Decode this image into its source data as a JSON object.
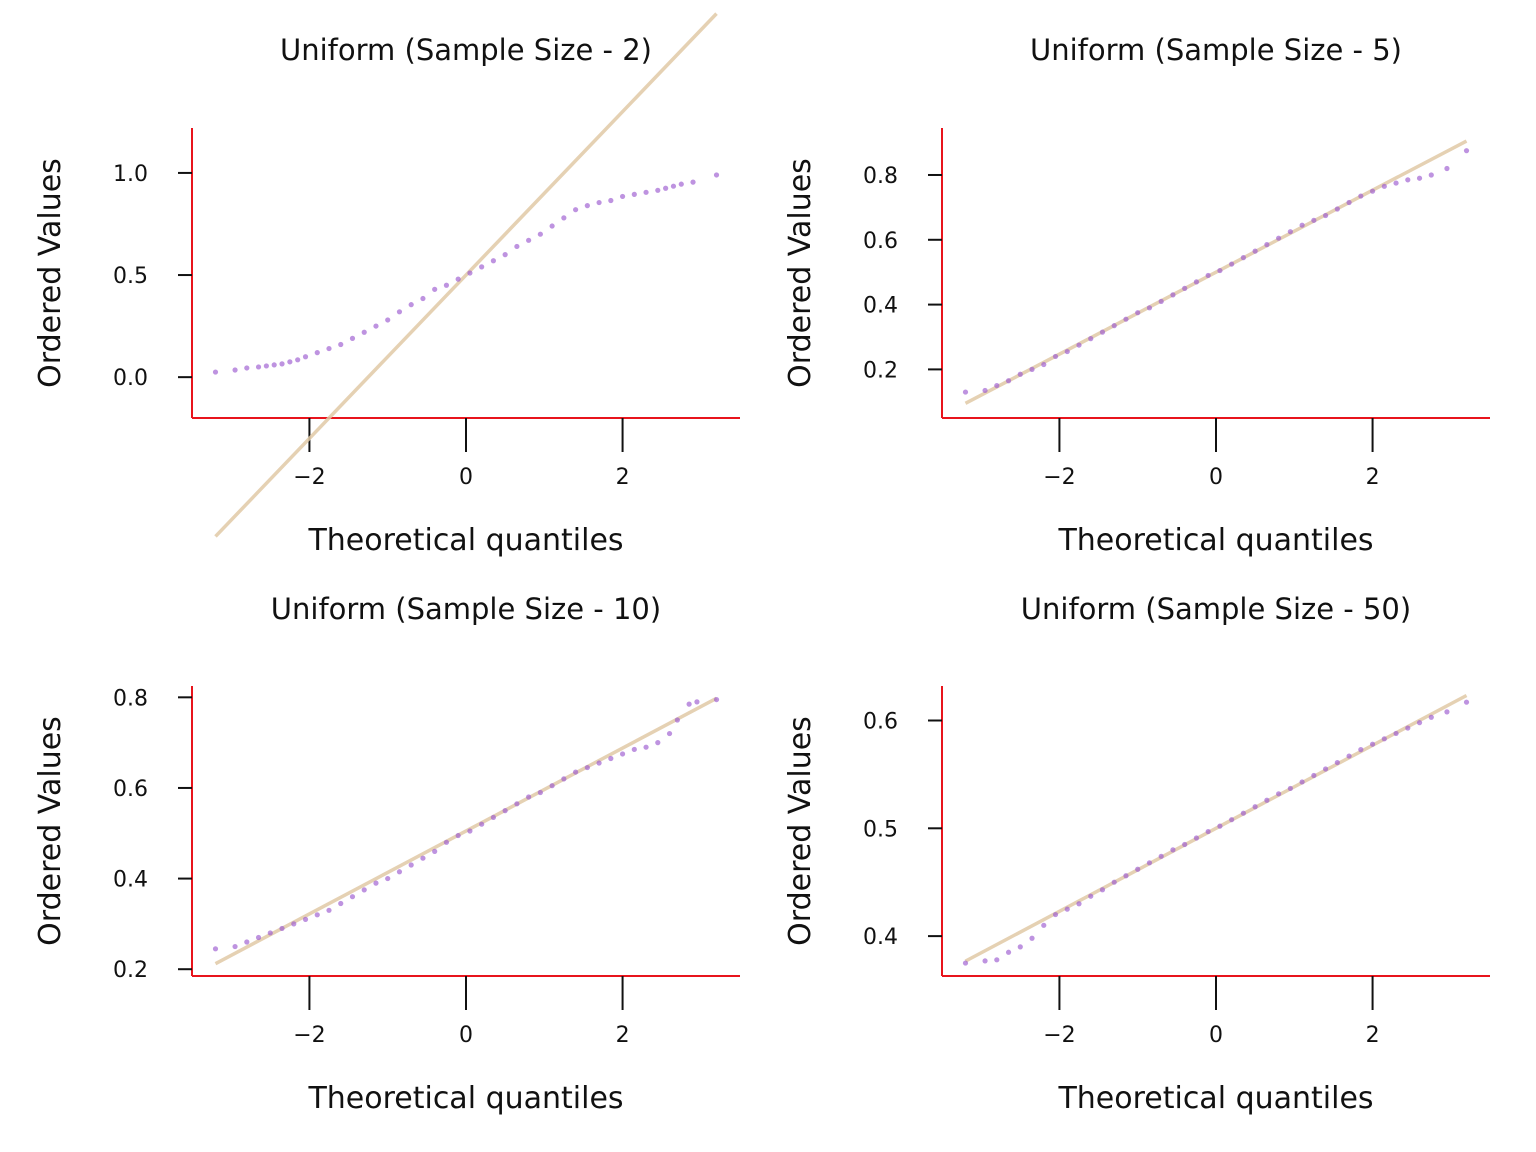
{
  "colors": {
    "points": "#9b59d0",
    "line": "#e0c9a6",
    "spines": "#e8141c"
  },
  "chart_data": [
    {
      "type": "scatter",
      "title": "Uniform (Sample Size - 2)",
      "xlabel": "Theoretical quantiles",
      "ylabel": "Ordered Values",
      "xlim": [
        -3.5,
        3.5
      ],
      "ylim": [
        -0.2,
        1.22
      ],
      "xticks": [
        -2,
        0,
        2
      ],
      "xtick_labels": [
        "−2",
        "0",
        "2"
      ],
      "yticks": [
        0.0,
        0.5,
        1.0
      ],
      "ytick_labels": [
        "0.0",
        "0.5",
        "1.0"
      ],
      "fit_line": {
        "slope": 0.4,
        "intercept": 0.5
      },
      "points": [
        [
          -3.2,
          0.025
        ],
        [
          -2.95,
          0.035
        ],
        [
          -2.8,
          0.045
        ],
        [
          -2.65,
          0.05
        ],
        [
          -2.55,
          0.055
        ],
        [
          -2.45,
          0.06
        ],
        [
          -2.35,
          0.065
        ],
        [
          -2.25,
          0.075
        ],
        [
          -2.15,
          0.085
        ],
        [
          -2.05,
          0.1
        ],
        [
          -1.9,
          0.12
        ],
        [
          -1.75,
          0.14
        ],
        [
          -1.6,
          0.16
        ],
        [
          -1.45,
          0.19
        ],
        [
          -1.3,
          0.22
        ],
        [
          -1.15,
          0.25
        ],
        [
          -1.0,
          0.28
        ],
        [
          -0.85,
          0.32
        ],
        [
          -0.7,
          0.355
        ],
        [
          -0.55,
          0.385
        ],
        [
          -0.4,
          0.43
        ],
        [
          -0.25,
          0.45
        ],
        [
          -0.1,
          0.48
        ],
        [
          0.05,
          0.51
        ],
        [
          0.2,
          0.54
        ],
        [
          0.35,
          0.57
        ],
        [
          0.5,
          0.6
        ],
        [
          0.65,
          0.64
        ],
        [
          0.8,
          0.67
        ],
        [
          0.95,
          0.7
        ],
        [
          1.1,
          0.74
        ],
        [
          1.25,
          0.78
        ],
        [
          1.4,
          0.82
        ],
        [
          1.55,
          0.84
        ],
        [
          1.7,
          0.855
        ],
        [
          1.85,
          0.865
        ],
        [
          2.0,
          0.885
        ],
        [
          2.15,
          0.895
        ],
        [
          2.3,
          0.905
        ],
        [
          2.45,
          0.915
        ],
        [
          2.55,
          0.925
        ],
        [
          2.65,
          0.935
        ],
        [
          2.75,
          0.945
        ],
        [
          2.9,
          0.955
        ],
        [
          3.2,
          0.99
        ]
      ]
    },
    {
      "type": "scatter",
      "title": "Uniform (Sample Size - 5)",
      "xlabel": "Theoretical quantiles",
      "ylabel": "Ordered Values",
      "xlim": [
        -3.5,
        3.5
      ],
      "ylim": [
        0.05,
        0.945
      ],
      "xticks": [
        -2,
        0,
        2
      ],
      "xtick_labels": [
        "−2",
        "0",
        "2"
      ],
      "yticks": [
        0.2,
        0.4,
        0.6,
        0.8
      ],
      "ytick_labels": [
        "0.2",
        "0.4",
        "0.6",
        "0.8"
      ],
      "fit_line": {
        "slope": 0.1265,
        "intercept": 0.5
      },
      "points": [
        [
          -3.2,
          0.13
        ],
        [
          -2.95,
          0.135
        ],
        [
          -2.8,
          0.15
        ],
        [
          -2.65,
          0.165
        ],
        [
          -2.5,
          0.185
        ],
        [
          -2.35,
          0.2
        ],
        [
          -2.2,
          0.215
        ],
        [
          -2.05,
          0.24
        ],
        [
          -1.9,
          0.255
        ],
        [
          -1.75,
          0.275
        ],
        [
          -1.6,
          0.295
        ],
        [
          -1.45,
          0.315
        ],
        [
          -1.3,
          0.335
        ],
        [
          -1.15,
          0.355
        ],
        [
          -1.0,
          0.375
        ],
        [
          -0.85,
          0.39
        ],
        [
          -0.7,
          0.41
        ],
        [
          -0.55,
          0.43
        ],
        [
          -0.4,
          0.45
        ],
        [
          -0.25,
          0.47
        ],
        [
          -0.1,
          0.49
        ],
        [
          0.05,
          0.505
        ],
        [
          0.2,
          0.525
        ],
        [
          0.35,
          0.545
        ],
        [
          0.5,
          0.565
        ],
        [
          0.65,
          0.585
        ],
        [
          0.8,
          0.605
        ],
        [
          0.95,
          0.625
        ],
        [
          1.1,
          0.645
        ],
        [
          1.25,
          0.66
        ],
        [
          1.4,
          0.675
        ],
        [
          1.55,
          0.695
        ],
        [
          1.7,
          0.715
        ],
        [
          1.85,
          0.735
        ],
        [
          2.0,
          0.75
        ],
        [
          2.15,
          0.765
        ],
        [
          2.3,
          0.775
        ],
        [
          2.45,
          0.785
        ],
        [
          2.6,
          0.79
        ],
        [
          2.75,
          0.8
        ],
        [
          2.95,
          0.82
        ],
        [
          3.2,
          0.875
        ]
      ]
    },
    {
      "type": "scatter",
      "title": "Uniform (Sample Size - 10)",
      "xlabel": "Theoretical quantiles",
      "ylabel": "Ordered Values",
      "xlim": [
        -3.5,
        3.5
      ],
      "ylim": [
        0.185,
        0.825
      ],
      "xticks": [
        -2,
        0,
        2
      ],
      "xtick_labels": [
        "−2",
        "0",
        "2"
      ],
      "yticks": [
        0.2,
        0.4,
        0.6,
        0.8
      ],
      "ytick_labels": [
        "0.2",
        "0.4",
        "0.6",
        "0.8"
      ],
      "fit_line": {
        "slope": 0.0915,
        "intercept": 0.505
      },
      "points": [
        [
          -3.2,
          0.245
        ],
        [
          -2.95,
          0.25
        ],
        [
          -2.8,
          0.26
        ],
        [
          -2.65,
          0.27
        ],
        [
          -2.5,
          0.28
        ],
        [
          -2.35,
          0.29
        ],
        [
          -2.2,
          0.3
        ],
        [
          -2.05,
          0.31
        ],
        [
          -1.9,
          0.32
        ],
        [
          -1.75,
          0.33
        ],
        [
          -1.6,
          0.345
        ],
        [
          -1.45,
          0.36
        ],
        [
          -1.3,
          0.375
        ],
        [
          -1.15,
          0.39
        ],
        [
          -1.0,
          0.4
        ],
        [
          -0.85,
          0.415
        ],
        [
          -0.7,
          0.43
        ],
        [
          -0.55,
          0.445
        ],
        [
          -0.4,
          0.46
        ],
        [
          -0.25,
          0.48
        ],
        [
          -0.1,
          0.495
        ],
        [
          0.05,
          0.505
        ],
        [
          0.2,
          0.52
        ],
        [
          0.35,
          0.535
        ],
        [
          0.5,
          0.55
        ],
        [
          0.65,
          0.565
        ],
        [
          0.8,
          0.58
        ],
        [
          0.95,
          0.59
        ],
        [
          1.1,
          0.605
        ],
        [
          1.25,
          0.62
        ],
        [
          1.4,
          0.635
        ],
        [
          1.55,
          0.645
        ],
        [
          1.7,
          0.655
        ],
        [
          1.85,
          0.665
        ],
        [
          2.0,
          0.675
        ],
        [
          2.15,
          0.685
        ],
        [
          2.3,
          0.69
        ],
        [
          2.45,
          0.7
        ],
        [
          2.6,
          0.72
        ],
        [
          2.7,
          0.75
        ],
        [
          2.85,
          0.785
        ],
        [
          2.95,
          0.79
        ],
        [
          3.2,
          0.795
        ]
      ]
    },
    {
      "type": "scatter",
      "title": "Uniform (Sample Size - 50)",
      "xlabel": "Theoretical quantiles",
      "ylabel": "Ordered Values",
      "xlim": [
        -3.5,
        3.5
      ],
      "ylim": [
        0.363,
        0.632
      ],
      "xticks": [
        -2,
        0,
        2
      ],
      "xtick_labels": [
        "−2",
        "0",
        "2"
      ],
      "yticks": [
        0.4,
        0.5,
        0.6
      ],
      "ytick_labels": [
        "0.4",
        "0.5",
        "0.6"
      ],
      "fit_line": {
        "slope": 0.0385,
        "intercept": 0.5
      },
      "points": [
        [
          -3.2,
          0.375
        ],
        [
          -2.95,
          0.377
        ],
        [
          -2.8,
          0.378
        ],
        [
          -2.65,
          0.385
        ],
        [
          -2.5,
          0.39
        ],
        [
          -2.35,
          0.398
        ],
        [
          -2.2,
          0.41
        ],
        [
          -2.05,
          0.42
        ],
        [
          -1.9,
          0.425
        ],
        [
          -1.75,
          0.43
        ],
        [
          -1.6,
          0.437
        ],
        [
          -1.45,
          0.443
        ],
        [
          -1.3,
          0.45
        ],
        [
          -1.15,
          0.456
        ],
        [
          -1.0,
          0.462
        ],
        [
          -0.85,
          0.468
        ],
        [
          -0.7,
          0.474
        ],
        [
          -0.55,
          0.48
        ],
        [
          -0.4,
          0.485
        ],
        [
          -0.25,
          0.491
        ],
        [
          -0.1,
          0.497
        ],
        [
          0.05,
          0.502
        ],
        [
          0.2,
          0.508
        ],
        [
          0.35,
          0.514
        ],
        [
          0.5,
          0.52
        ],
        [
          0.65,
          0.526
        ],
        [
          0.8,
          0.532
        ],
        [
          0.95,
          0.537
        ],
        [
          1.1,
          0.543
        ],
        [
          1.25,
          0.549
        ],
        [
          1.4,
          0.555
        ],
        [
          1.55,
          0.561
        ],
        [
          1.7,
          0.567
        ],
        [
          1.85,
          0.573
        ],
        [
          2.0,
          0.578
        ],
        [
          2.15,
          0.583
        ],
        [
          2.3,
          0.588
        ],
        [
          2.45,
          0.593
        ],
        [
          2.6,
          0.598
        ],
        [
          2.75,
          0.603
        ],
        [
          2.95,
          0.608
        ],
        [
          3.2,
          0.617
        ]
      ]
    }
  ]
}
